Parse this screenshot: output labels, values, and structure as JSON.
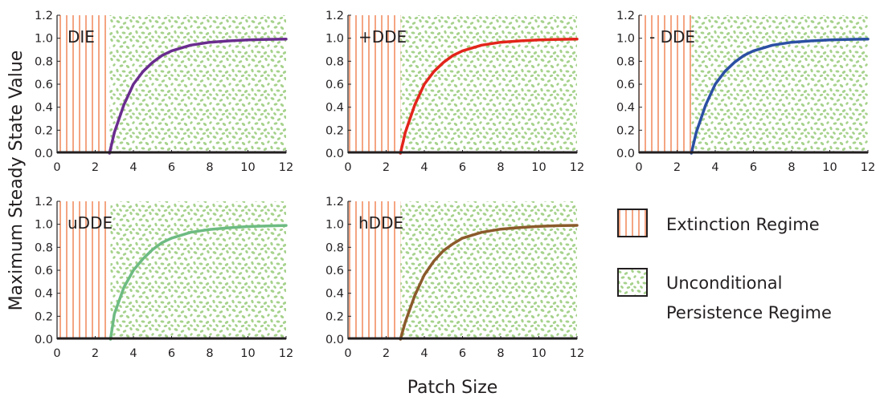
{
  "figure": {
    "ylabel": "Maximum Steady State Value",
    "xlabel": "Patch Size"
  },
  "legend": {
    "extinction_label": "Extinction Regime",
    "persistence_label_line1": "Unconditional",
    "persistence_label_line2": "Persistence Regime",
    "extinction_color": "#f4a582",
    "persistence_color": "#a6d28c"
  },
  "chart_data": [
    {
      "type": "line",
      "panel_label": "DIE",
      "color": "#6a2c8e",
      "xlim": [
        0,
        12
      ],
      "ylim": [
        0,
        1.2
      ],
      "xticks": [
        0,
        2,
        4,
        6,
        8,
        10,
        12
      ],
      "yticks": [
        "0.0",
        "0.2",
        "0.4",
        "0.6",
        "0.8",
        "1.0",
        "1.2"
      ],
      "extinction_regime_xmax": 2.75,
      "x": [
        0,
        2.75,
        3,
        3.5,
        4,
        4.5,
        5,
        5.5,
        6,
        7,
        8,
        9,
        10,
        11,
        12
      ],
      "y": [
        0,
        0,
        0.18,
        0.42,
        0.6,
        0.71,
        0.79,
        0.85,
        0.89,
        0.94,
        0.965,
        0.977,
        0.985,
        0.99,
        0.993
      ]
    },
    {
      "type": "line",
      "panel_label": "+DDE",
      "color": "#e3241b",
      "xlim": [
        0,
        12
      ],
      "ylim": [
        0,
        1.2
      ],
      "xticks": [
        0,
        2,
        4,
        6,
        8,
        10,
        12
      ],
      "yticks": [
        "0.0",
        "0.2",
        "0.4",
        "0.6",
        "0.8",
        "1.0",
        "1.2"
      ],
      "extinction_regime_xmax": 2.75,
      "x": [
        0,
        2.75,
        3,
        3.5,
        4,
        4.5,
        5,
        5.5,
        6,
        7,
        8,
        9,
        10,
        11,
        12
      ],
      "y": [
        0,
        0,
        0.18,
        0.42,
        0.6,
        0.71,
        0.79,
        0.85,
        0.89,
        0.94,
        0.965,
        0.977,
        0.985,
        0.99,
        0.993
      ]
    },
    {
      "type": "line",
      "panel_label": "- DDE",
      "color": "#2b4fa3",
      "xlim": [
        0,
        12
      ],
      "ylim": [
        0,
        1.2
      ],
      "xticks": [
        0,
        2,
        4,
        6,
        8,
        10,
        12
      ],
      "yticks": [
        "0.0",
        "0.2",
        "0.4",
        "0.6",
        "0.8",
        "1.0",
        "1.2"
      ],
      "extinction_regime_xmax": 2.75,
      "x": [
        0,
        2.75,
        3,
        3.5,
        4,
        4.5,
        5,
        5.5,
        6,
        7,
        8,
        9,
        10,
        11,
        12
      ],
      "y": [
        0,
        0,
        0.18,
        0.42,
        0.6,
        0.71,
        0.79,
        0.85,
        0.89,
        0.94,
        0.965,
        0.977,
        0.985,
        0.99,
        0.993
      ]
    },
    {
      "type": "line",
      "panel_label": "uDDE",
      "color": "#6dbb82",
      "xlim": [
        0,
        12
      ],
      "ylim": [
        0,
        1.2
      ],
      "xticks": [
        0,
        2,
        4,
        6,
        8,
        10,
        12
      ],
      "yticks": [
        "0.0",
        "0.2",
        "0.4",
        "0.6",
        "0.8",
        "1.0",
        "1.2"
      ],
      "extinction_regime_xmax": 2.8,
      "x": [
        0,
        2.8,
        3,
        3.5,
        4,
        4.5,
        5,
        5.5,
        6,
        7,
        8,
        9,
        10,
        11,
        12
      ],
      "y": [
        0,
        0,
        0.22,
        0.45,
        0.6,
        0.7,
        0.78,
        0.84,
        0.88,
        0.93,
        0.955,
        0.97,
        0.98,
        0.985,
        0.99
      ]
    },
    {
      "type": "line",
      "panel_label": "hDDE",
      "color": "#8b5a2b",
      "xlim": [
        0,
        12
      ],
      "ylim": [
        0,
        1.2
      ],
      "xticks": [
        0,
        2,
        4,
        6,
        8,
        10,
        12
      ],
      "yticks": [
        "0.0",
        "0.2",
        "0.4",
        "0.6",
        "0.8",
        "1.0",
        "1.2"
      ],
      "extinction_regime_xmax": 2.75,
      "x": [
        0,
        2.75,
        3,
        3.5,
        4,
        4.5,
        5,
        5.5,
        6,
        7,
        8,
        9,
        10,
        11,
        12
      ],
      "y": [
        0,
        0,
        0.15,
        0.38,
        0.56,
        0.68,
        0.77,
        0.83,
        0.88,
        0.93,
        0.958,
        0.972,
        0.982,
        0.988,
        0.991
      ]
    }
  ]
}
